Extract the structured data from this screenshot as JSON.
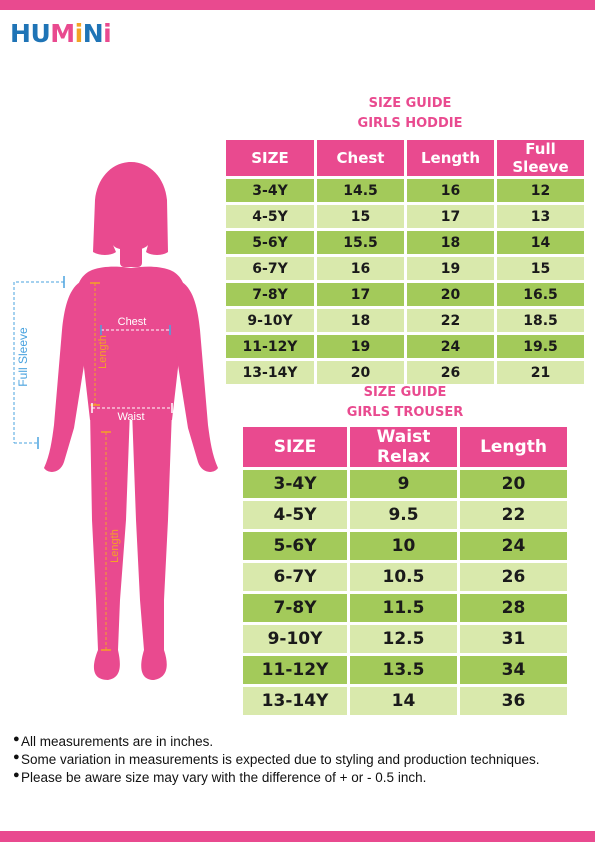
{
  "brand": {
    "letters": [
      "H",
      "U",
      "M",
      "i",
      "N",
      "i"
    ],
    "colors": [
      "#1f74b6",
      "#1f74b6",
      "#e94a8f",
      "#f4a324",
      "#1f74b6",
      "#e94a8f"
    ]
  },
  "hoodie": {
    "title_line1": "SIZE GUIDE",
    "title_line2": "GIRLS HODDIE",
    "headers": [
      "SIZE",
      "Chest",
      "Length",
      "Full Sleeve"
    ],
    "rows": [
      [
        "3-4Y",
        "14.5",
        "16",
        "12"
      ],
      [
        "4-5Y",
        "15",
        "17",
        "13"
      ],
      [
        "5-6Y",
        "15.5",
        "18",
        "14"
      ],
      [
        "6-7Y",
        "16",
        "19",
        "15"
      ],
      [
        "7-8Y",
        "17",
        "20",
        "16.5"
      ],
      [
        "9-10Y",
        "18",
        "22",
        "18.5"
      ],
      [
        "11-12Y",
        "19",
        "24",
        "19.5"
      ],
      [
        "13-14Y",
        "20",
        "26",
        "21"
      ]
    ]
  },
  "trouser": {
    "title_line1": "SIZE GUIDE",
    "title_line2": "GIRLS TROUSER",
    "headers": [
      "SIZE",
      "Waist Relax",
      "Length"
    ],
    "rows": [
      [
        "3-4Y",
        "9",
        "20"
      ],
      [
        "4-5Y",
        "9.5",
        "22"
      ],
      [
        "5-6Y",
        "10",
        "24"
      ],
      [
        "6-7Y",
        "10.5",
        "26"
      ],
      [
        "7-8Y",
        "11.5",
        "28"
      ],
      [
        "9-10Y",
        "12.5",
        "31"
      ],
      [
        "11-12Y",
        "13.5",
        "34"
      ],
      [
        "13-14Y",
        "14",
        "36"
      ]
    ]
  },
  "figure_labels": {
    "chest": "Chest",
    "length_top": "Length",
    "full_sleeve": "Full Sleeve",
    "waist": "Waist",
    "length_bottom": "Length"
  },
  "colors": {
    "pink": "#e94a8f",
    "green_dark": "#a3ca5a",
    "green_light": "#d9e9ac",
    "measure_orange": "#f4a324",
    "measure_blue": "#4aa3df"
  },
  "notes": [
    "All measurements are in inches.",
    "Some variation in measurements is expected due to styling and production techniques.",
    "Please be aware size may vary with the difference of + or - 0.5 inch."
  ]
}
